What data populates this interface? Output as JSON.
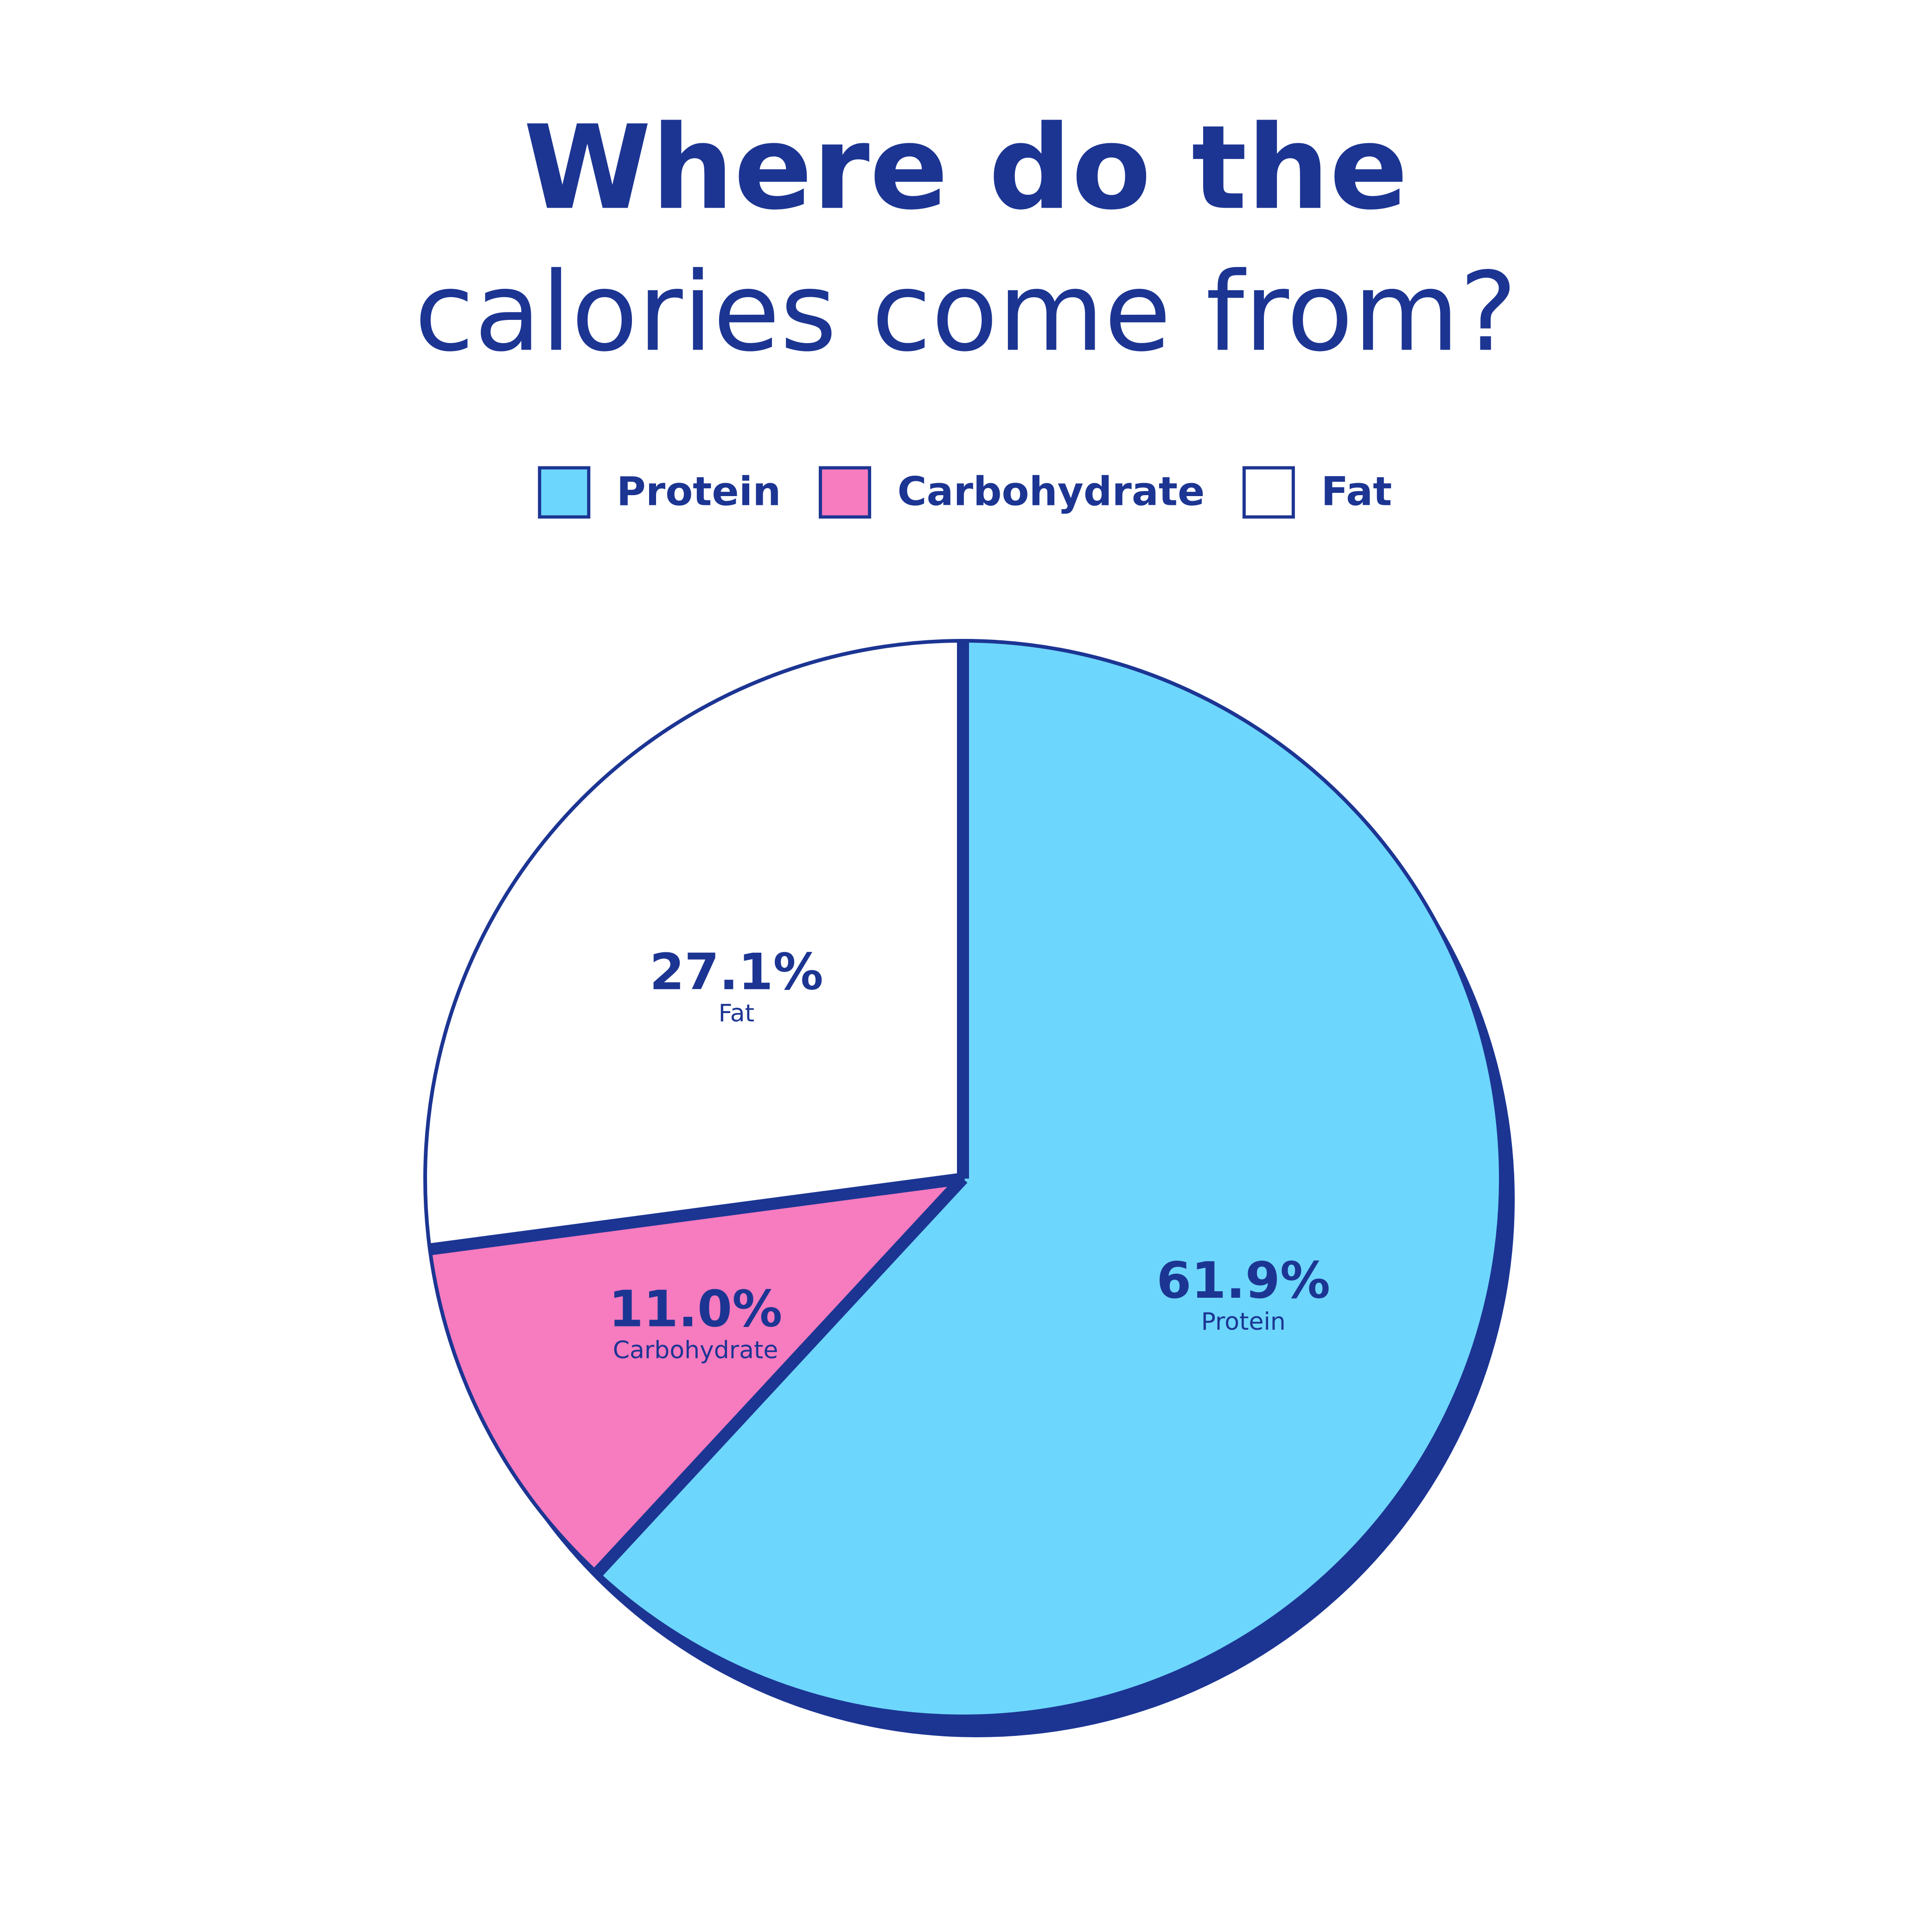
{
  "chart_data": {
    "type": "pie",
    "title": "Where do the",
    "subtitle": "calories come from?",
    "categories": [
      "Protein",
      "Carbohydrate",
      "Fat"
    ],
    "values": [
      61.9,
      11.0,
      27.1
    ],
    "value_labels": [
      "61.9%",
      "11.0%",
      "27.1%"
    ],
    "colors": [
      "#6dd6fc",
      "#f77bbf",
      "#ffffff"
    ]
  }
}
